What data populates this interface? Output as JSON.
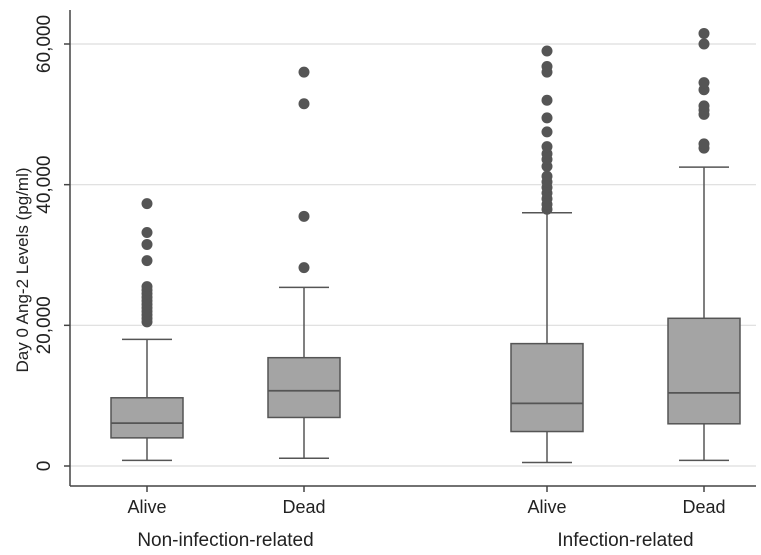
{
  "chart_data": {
    "type": "box",
    "title": "",
    "xlabel": "",
    "ylabel": "Day 0 Ang-2 Levels (pg/ml)",
    "ylim": [
      -2500,
      64000
    ],
    "yticks": [
      0,
      20000,
      40000,
      60000
    ],
    "ytick_labels": [
      "0",
      "20,000",
      "40,000",
      "60,000"
    ],
    "grid": "horizontal",
    "groups": [
      {
        "label": "Non-infection-related",
        "categories": [
          "Alive",
          "Dead"
        ]
      },
      {
        "label": "Infection-related",
        "categories": [
          "Alive",
          "Dead"
        ]
      }
    ],
    "boxes": [
      {
        "group": "Non-infection-related",
        "category": "Alive",
        "whisker_low": 800,
        "q1": 4000,
        "median": 6100,
        "q3": 9700,
        "whisker_high": 18000,
        "outliers": [
          20500,
          21000,
          21500,
          22000,
          22500,
          23000,
          23500,
          24000,
          24500,
          25000,
          25500,
          29200,
          31500,
          33200,
          37300
        ]
      },
      {
        "group": "Non-infection-related",
        "category": "Dead",
        "whisker_low": 1100,
        "q1": 6900,
        "median": 10700,
        "q3": 15400,
        "whisker_high": 25400,
        "outliers": [
          28200,
          35500,
          51500,
          56000
        ]
      },
      {
        "group": "Infection-related",
        "category": "Alive",
        "whisker_low": 500,
        "q1": 4900,
        "median": 8900,
        "q3": 17400,
        "whisker_high": 36000,
        "outliers": [
          36500,
          37200,
          38000,
          38800,
          39600,
          40400,
          41200,
          42600,
          43600,
          44400,
          45400,
          47500,
          49500,
          52000,
          56000,
          56800,
          59000
        ]
      },
      {
        "group": "Infection-related",
        "category": "Dead",
        "whisker_low": 800,
        "q1": 6000,
        "median": 10400,
        "q3": 21000,
        "whisker_high": 42500,
        "outliers": [
          45200,
          45800,
          50000,
          50600,
          51200,
          53500,
          54500,
          60000,
          61500
        ]
      }
    ],
    "colors": {
      "box_fill": "#a4a4a4",
      "box_stroke": "#555555",
      "outlier": "#555555",
      "grid": "#dddddd",
      "axis": "#444444"
    }
  }
}
